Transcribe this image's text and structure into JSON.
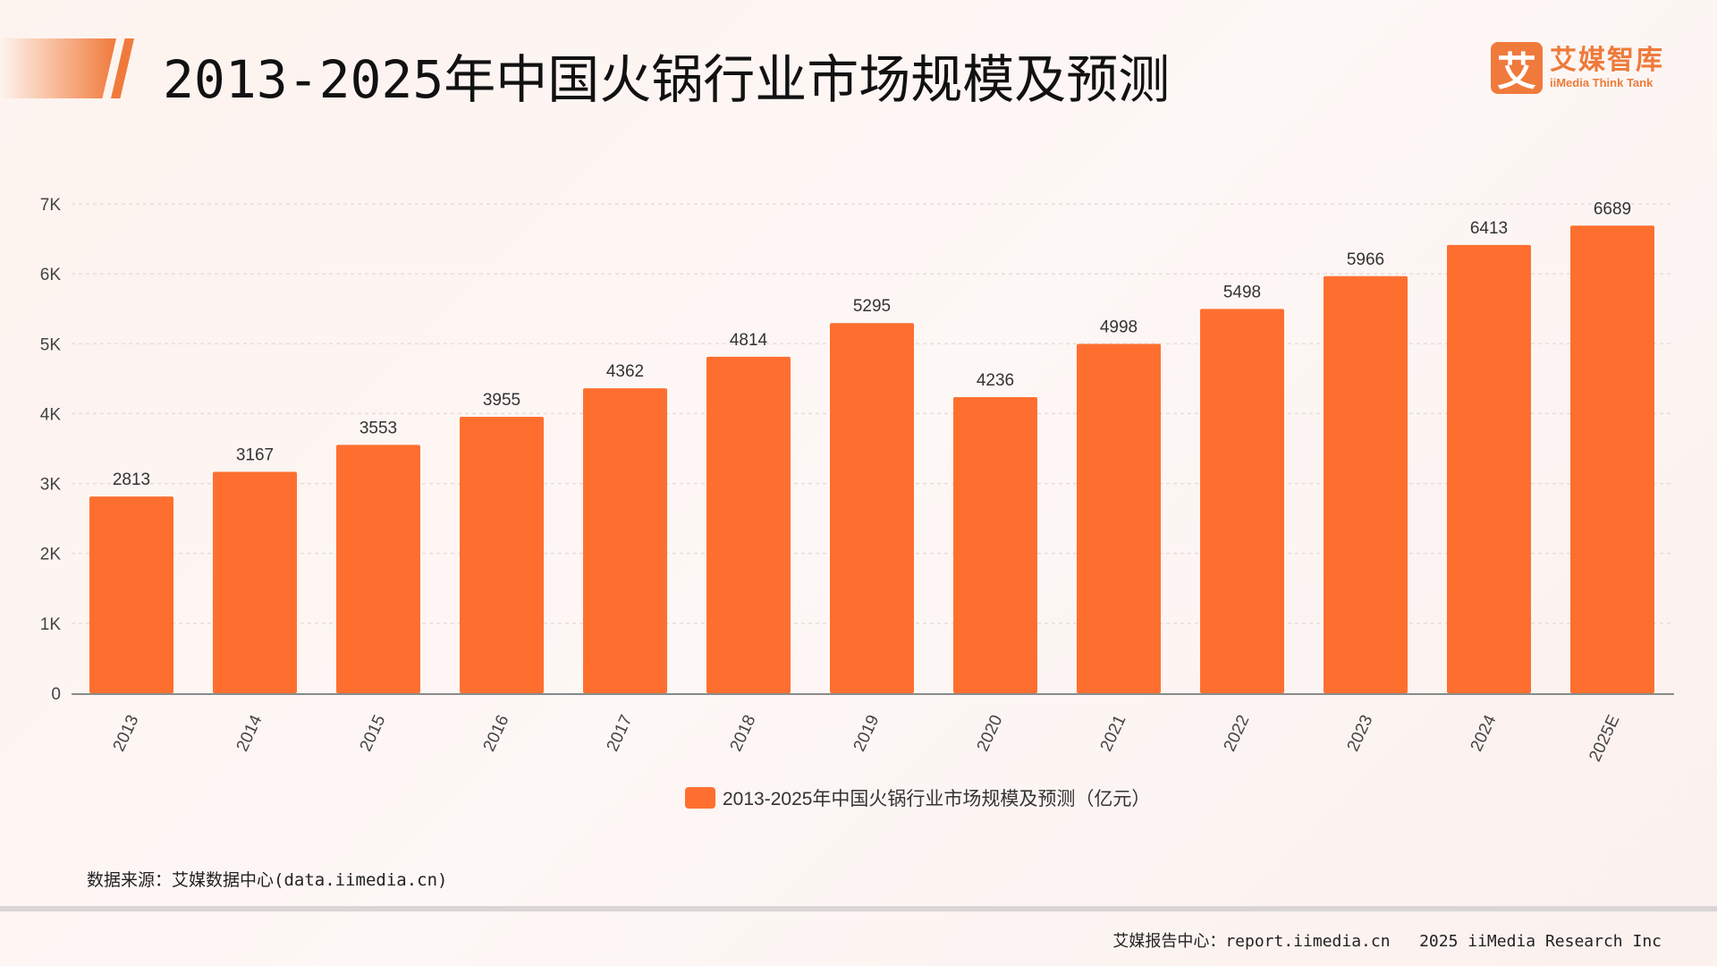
{
  "header": {
    "title": "2013-2025年中国火锅行业市场规模及预测"
  },
  "logo": {
    "mark": "艾",
    "name_cn": "艾媒智库",
    "name_en": "iiMedia Think Tank"
  },
  "colors": {
    "bar": "#fe6f2f",
    "accent": "#f07a3c"
  },
  "chart_data": {
    "type": "bar",
    "categories": [
      "2013",
      "2014",
      "2015",
      "2016",
      "2017",
      "2018",
      "2019",
      "2020",
      "2021",
      "2022",
      "2023",
      "2024",
      "2025E"
    ],
    "series": [
      {
        "name": "2013-2025年中国火锅行业市场规模及预测（亿元）",
        "values": [
          2813,
          3167,
          3553,
          3955,
          4362,
          4814,
          5295,
          4236,
          4998,
          5498,
          5966,
          6413,
          6689
        ]
      }
    ],
    "ylim": [
      0,
      7000
    ],
    "yticks": [
      {
        "v": 0,
        "label": "0"
      },
      {
        "v": 1000,
        "label": "1K"
      },
      {
        "v": 2000,
        "label": "2K"
      },
      {
        "v": 3000,
        "label": "3K"
      },
      {
        "v": 4000,
        "label": "4K"
      },
      {
        "v": 5000,
        "label": "5K"
      },
      {
        "v": 6000,
        "label": "6K"
      },
      {
        "v": 7000,
        "label": "7K"
      }
    ],
    "grid": true,
    "legend": "bottom",
    "data_labels": true
  },
  "source": "数据来源：艾媒数据中心(data.iimedia.cn)",
  "footer": "艾媒报告中心：report.iimedia.cn   2025 iiMedia Research Inc"
}
